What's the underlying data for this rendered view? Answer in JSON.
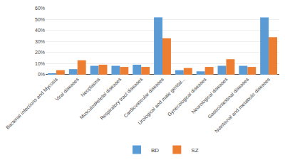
{
  "chart_data": {
    "type": "bar",
    "categories": [
      "Bacterial infections and Mycosis",
      "Viral diseases",
      "Neoplasms",
      "Musculoskeletal diseases",
      "Respiratory tract diseases",
      "Cardiovascular diseases",
      "Urological and male genital...",
      "Gynecological diseases",
      "Neurological diseases",
      "Gastrointestinal diseases",
      "Nutritional and metabolic diseases"
    ],
    "series": [
      {
        "name": "BD",
        "color": "#5b9bd5",
        "values": [
          1,
          5,
          8,
          8,
          9,
          52,
          4,
          3,
          8,
          8,
          52
        ]
      },
      {
        "name": "SZ",
        "color": "#ed7d31",
        "values": [
          4,
          13,
          9,
          7,
          7,
          33,
          6,
          7,
          14,
          7,
          34
        ]
      }
    ],
    "ylim": [
      0,
      60
    ],
    "yticks": [
      {
        "value": 0,
        "label": "0%"
      },
      {
        "value": 10,
        "label": "10%"
      },
      {
        "value": 20,
        "label": "20%"
      },
      {
        "value": 30,
        "label": "30%"
      },
      {
        "value": 40,
        "label": "40%"
      },
      {
        "value": 50,
        "label": "50%"
      },
      {
        "value": 60,
        "label": "60%"
      }
    ],
    "grid": true,
    "legend": "bottom"
  }
}
